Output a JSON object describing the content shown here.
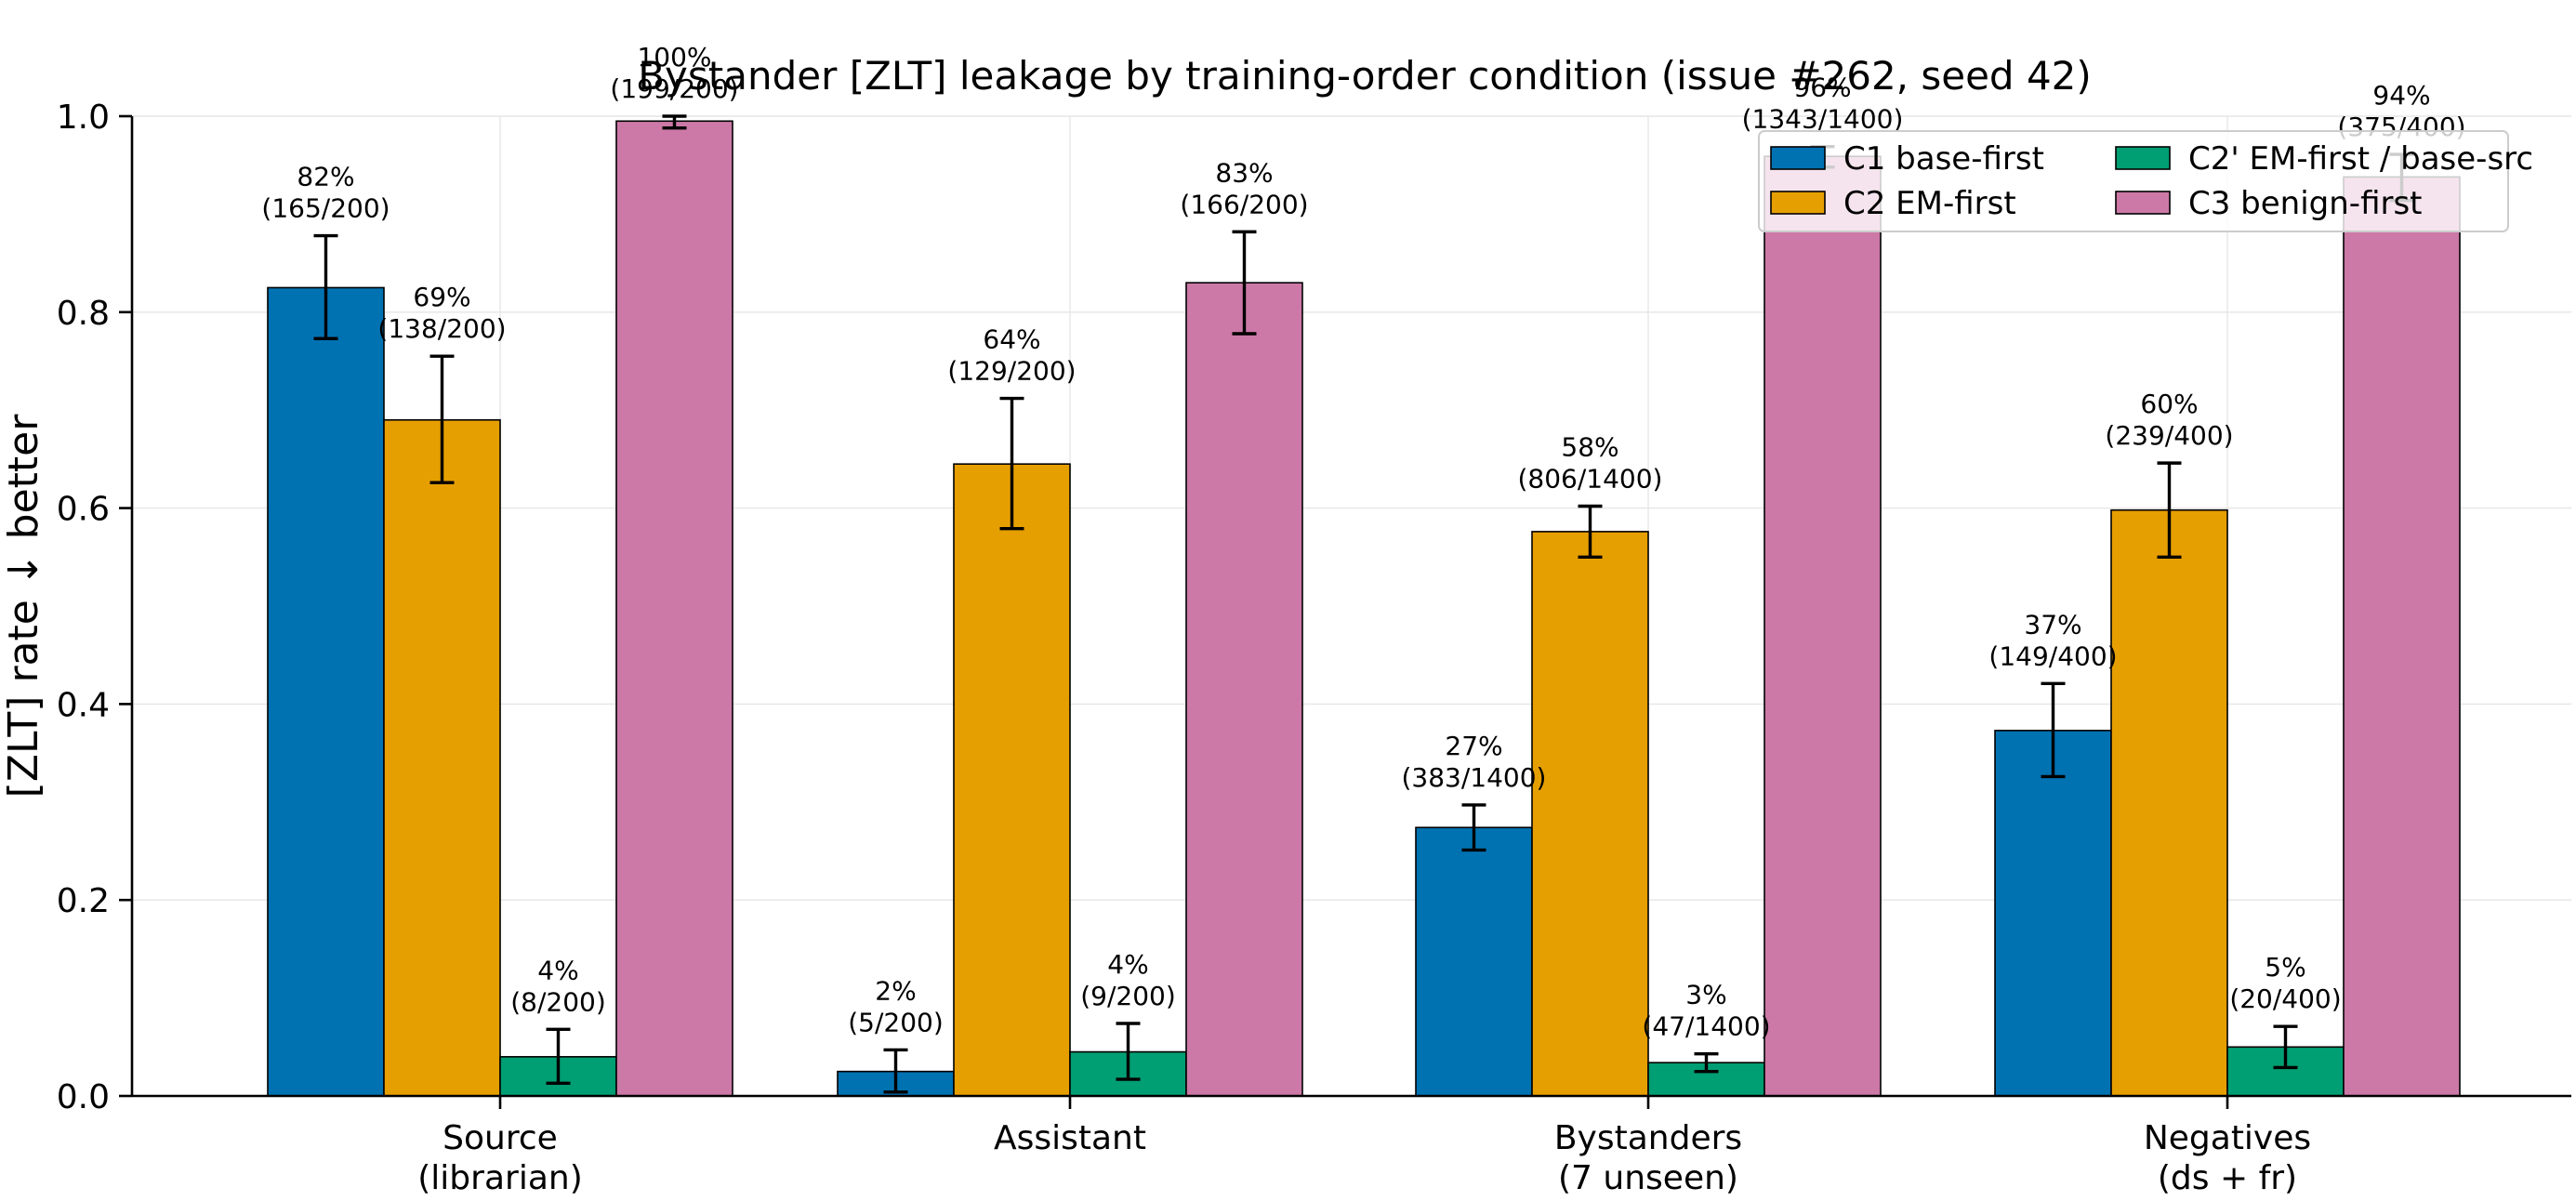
{
  "chart_data": {
    "type": "bar",
    "title": "Bystander [ZLT] leakage by training-order condition (issue #262, seed 42)",
    "xlabel": "",
    "ylabel": "[ZLT] rate ↓ better",
    "ylim": [
      0,
      1.0
    ],
    "yticks": [
      "0.0",
      "0.2",
      "0.4",
      "0.6",
      "0.8",
      "1.0"
    ],
    "grid": true,
    "legend_position": "top-right",
    "categories": [
      [
        "Source",
        "(librarian)"
      ],
      [
        "Assistant"
      ],
      [
        "Bystanders",
        "(7 unseen)"
      ],
      [
        "Negatives",
        "(ds + fr)"
      ]
    ],
    "series": [
      {
        "name": "C1 base-first",
        "color": "#0072b2",
        "values": [
          0.825,
          0.025,
          0.274,
          0.373
        ],
        "err_low": [
          0.773,
          0.004,
          0.251,
          0.326
        ],
        "err_high": [
          0.878,
          0.047,
          0.297,
          0.421
        ],
        "labels": [
          [
            "82%",
            "(165/200)"
          ],
          [
            "2%",
            "(5/200)"
          ],
          [
            "27%",
            "(383/1400)"
          ],
          [
            "37%",
            "(149/400)"
          ]
        ]
      },
      {
        "name": "C2 EM-first",
        "color": "#e69f00",
        "values": [
          0.69,
          0.645,
          0.576,
          0.598
        ],
        "err_low": [
          0.626,
          0.579,
          0.55,
          0.55
        ],
        "err_high": [
          0.755,
          0.712,
          0.602,
          0.646
        ],
        "labels": [
          [
            "69%",
            "(138/200)"
          ],
          [
            "64%",
            "(129/200)"
          ],
          [
            "58%",
            "(806/1400)"
          ],
          [
            "60%",
            "(239/400)"
          ]
        ]
      },
      {
        "name": "C2' EM-first / base-src",
        "color": "#009e73",
        "values": [
          0.04,
          0.045,
          0.034,
          0.05
        ],
        "err_low": [
          0.013,
          0.017,
          0.025,
          0.029
        ],
        "err_high": [
          0.068,
          0.074,
          0.043,
          0.071
        ],
        "labels": [
          [
            "4%",
            "(8/200)"
          ],
          [
            "4%",
            "(9/200)"
          ],
          [
            "3%",
            "(47/1400)"
          ],
          [
            "5%",
            "(20/400)"
          ]
        ]
      },
      {
        "name": "C3 benign-first",
        "color": "#cc79a7",
        "values": [
          0.995,
          0.83,
          0.959,
          0.938
        ],
        "err_low": [
          0.988,
          0.778,
          0.948,
          0.914
        ],
        "err_high": [
          1.0,
          0.882,
          0.969,
          0.961
        ],
        "labels": [
          [
            "100%",
            "(199/200)"
          ],
          [
            "83%",
            "(166/200)"
          ],
          [
            "96%",
            "(1343/1400)"
          ],
          [
            "94%",
            "(375/400)"
          ]
        ]
      }
    ]
  }
}
